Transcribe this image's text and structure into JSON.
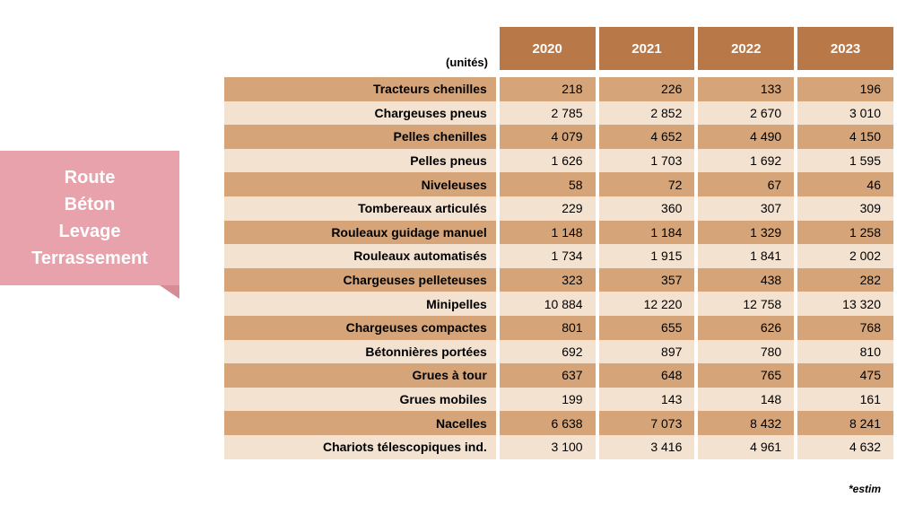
{
  "note": {
    "lines": [
      "Route",
      "Béton",
      "Levage",
      "Terrassement"
    ],
    "bg": "#e7a2ab",
    "fold": "#d88a95"
  },
  "table": {
    "units_label": "(unités)",
    "header_bg": "#b87848",
    "row_colors": [
      "#d6a479",
      "#f3e2d0"
    ],
    "years": [
      "2020",
      "2021",
      "2022",
      "2023"
    ],
    "rows": [
      {
        "label": "Tracteurs chenilles",
        "values": [
          "218",
          "226",
          "133",
          "196"
        ]
      },
      {
        "label": "Chargeuses pneus",
        "values": [
          "2 785",
          "2 852",
          "2 670",
          "3 010"
        ]
      },
      {
        "label": "Pelles chenilles",
        "values": [
          "4 079",
          "4 652",
          "4 490",
          "4 150"
        ]
      },
      {
        "label": "Pelles pneus",
        "values": [
          "1 626",
          "1 703",
          "1 692",
          "1 595"
        ]
      },
      {
        "label": "Niveleuses",
        "values": [
          "58",
          "72",
          "67",
          "46"
        ]
      },
      {
        "label": "Tombereaux articulés",
        "values": [
          "229",
          "360",
          "307",
          "309"
        ]
      },
      {
        "label": "Rouleaux guidage manuel",
        "values": [
          "1 148",
          "1 184",
          "1 329",
          "1 258"
        ]
      },
      {
        "label": "Rouleaux automatisés",
        "values": [
          "1 734",
          "1 915",
          "1 841",
          "2 002"
        ]
      },
      {
        "label": "Chargeuses pelleteuses",
        "values": [
          "323",
          "357",
          "438",
          "282"
        ]
      },
      {
        "label": "Minipelles",
        "values": [
          "10 884",
          "12 220",
          "12 758",
          "13 320"
        ]
      },
      {
        "label": "Chargeuses compactes",
        "values": [
          "801",
          "655",
          "626",
          "768"
        ]
      },
      {
        "label": "Bétonnières portées",
        "values": [
          "692",
          "897",
          "780",
          "810"
        ]
      },
      {
        "label": "Grues à tour",
        "values": [
          "637",
          "648",
          "765",
          "475"
        ]
      },
      {
        "label": "Grues mobiles",
        "values": [
          "199",
          "143",
          "148",
          "161"
        ]
      },
      {
        "label": "Nacelles",
        "values": [
          "6 638",
          "7 073",
          "8 432",
          "8 241"
        ]
      },
      {
        "label": "Chariots télescopiques ind.",
        "values": [
          "3 100",
          "3 416",
          "4 961",
          "4 632"
        ]
      }
    ]
  },
  "footnote": "*estim"
}
